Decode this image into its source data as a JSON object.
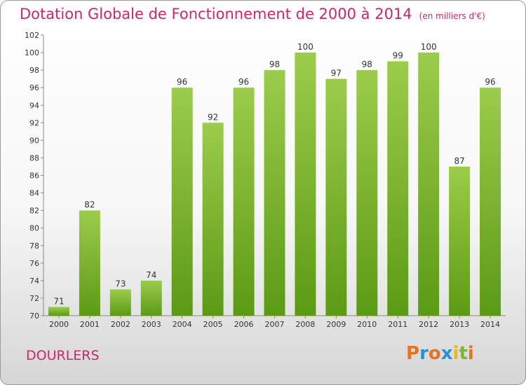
{
  "title": "Dotation Globale de Fonctionnement de 2000 à 2014",
  "unit_label": "(en milliers d'€)",
  "commune": "DOURLERS",
  "logo": {
    "text": "Proxiti",
    "colors": [
      "#e8731c",
      "#2a8fd8",
      "#e8731c",
      "#2a8fd8",
      "#e8b81c",
      "#7ab82a",
      "#e8731c"
    ]
  },
  "colors": {
    "bar_top": "#9ccc4c",
    "bar_bottom": "#5c9a14",
    "title": "#c8286e"
  },
  "chart_data": {
    "type": "bar",
    "title": "Dotation Globale de Fonctionnement de 2000 à 2014",
    "subtitle": "(en milliers d'€)",
    "categories": [
      "2000",
      "2001",
      "2002",
      "2003",
      "2004",
      "2005",
      "2006",
      "2007",
      "2008",
      "2009",
      "2010",
      "2011",
      "2012",
      "2013",
      "2014"
    ],
    "values": [
      71,
      82,
      73,
      74,
      96,
      92,
      96,
      98,
      100,
      97,
      98,
      99,
      100,
      87,
      96
    ],
    "xlabel": "",
    "ylabel": "",
    "ylim": [
      70,
      102
    ],
    "yticks": [
      70,
      72,
      74,
      76,
      78,
      80,
      82,
      84,
      86,
      88,
      90,
      92,
      94,
      96,
      98,
      100,
      102
    ],
    "grid": false,
    "legend": "none"
  }
}
